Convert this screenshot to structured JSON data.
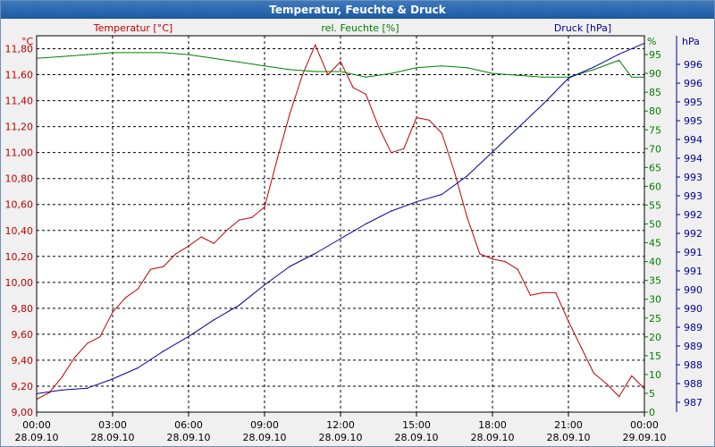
{
  "window": {
    "title": "Temperatur, Feuchte & Druck"
  },
  "colors": {
    "temperature": "#c00000",
    "humidity": "#008000",
    "pressure": "#000099",
    "grid": "#000000",
    "plot_bg": "#ffffff"
  },
  "chart_data": {
    "type": "line",
    "title": "Temperatur, Feuchte & Druck",
    "grid": true,
    "x_axis": {
      "ticks": [
        {
          "time": "00:00",
          "date": "28.09.10"
        },
        {
          "time": "03:00",
          "date": "28.09.10"
        },
        {
          "time": "06:00",
          "date": "28.09.10"
        },
        {
          "time": "09:00",
          "date": "28.09.10"
        },
        {
          "time": "12:00",
          "date": "28.09.10"
        },
        {
          "time": "15:00",
          "date": "28.09.10"
        },
        {
          "time": "18:00",
          "date": "28.09.10"
        },
        {
          "time": "21:00",
          "date": "28.09.10"
        },
        {
          "time": "00:00",
          "date": "29.09.10"
        }
      ],
      "range_hours": [
        0,
        24
      ]
    },
    "y_left": {
      "unit": "°C",
      "label": "Temperatur [°C]",
      "range": [
        9.0,
        11.9
      ],
      "ticks": [
        "11,80",
        "11,60",
        "11,40",
        "11,20",
        "11,00",
        "10,80",
        "10,60",
        "10,40",
        "10,20",
        "10,00",
        "9,80",
        "9,60",
        "9,40",
        "9,20",
        "9,00"
      ],
      "tick_values": [
        11.8,
        11.6,
        11.4,
        11.2,
        11.0,
        10.8,
        10.6,
        10.4,
        10.2,
        10.0,
        9.8,
        9.6,
        9.4,
        9.2,
        9.0
      ]
    },
    "y_right1": {
      "unit": "%",
      "label": "rel. Feuchte [%]",
      "range": [
        0,
        100
      ],
      "ticks": [
        "95",
        "90",
        "85",
        "80",
        "75",
        "70",
        "65",
        "60",
        "55",
        "50",
        "45",
        "40",
        "35",
        "30",
        "25",
        "20",
        "15",
        "10",
        "5",
        "0"
      ],
      "tick_values": [
        95,
        90,
        85,
        80,
        75,
        70,
        65,
        60,
        55,
        50,
        45,
        40,
        35,
        30,
        25,
        20,
        15,
        10,
        5,
        0
      ]
    },
    "y_right2": {
      "unit": "hPa",
      "label": "Druck [hPa]",
      "range": [
        986.4,
        996.6
      ],
      "ticks": [
        "996",
        "996",
        "995",
        "995",
        "994",
        "994",
        "993",
        "993",
        "992",
        "992",
        "991",
        "991",
        "990",
        "990",
        "989",
        "989",
        "988",
        "988",
        "987"
      ]
    },
    "series": [
      {
        "name": "Temperatur [°C]",
        "axis": "left",
        "x": [
          0,
          0.5,
          1,
          1.5,
          2,
          2.5,
          3,
          3.5,
          4,
          4.5,
          5,
          5.5,
          6,
          6.5,
          7,
          7.5,
          8,
          8.5,
          9,
          9.5,
          10,
          10.5,
          11,
          11.5,
          12,
          12.5,
          13,
          13.5,
          14,
          14.5,
          15,
          15.5,
          16,
          16.5,
          17,
          17.5,
          18,
          18.5,
          19,
          19.5,
          20,
          20.5,
          21,
          21.5,
          22,
          22.5,
          23,
          23.5,
          24
        ],
        "values": [
          9.1,
          9.15,
          9.27,
          9.42,
          9.53,
          9.58,
          9.77,
          9.88,
          9.95,
          10.1,
          10.12,
          10.22,
          10.28,
          10.35,
          10.3,
          10.4,
          10.48,
          10.5,
          10.58,
          10.95,
          11.3,
          11.6,
          11.83,
          11.6,
          11.7,
          11.5,
          11.45,
          11.2,
          11.0,
          11.03,
          11.27,
          11.25,
          11.15,
          10.85,
          10.5,
          10.22,
          10.18,
          10.16,
          10.1,
          9.9,
          9.92,
          9.92,
          9.7,
          9.5,
          9.3,
          9.22,
          9.12,
          9.28,
          9.18
        ]
      },
      {
        "name": "rel. Feuchte [%]",
        "axis": "right1",
        "x": [
          0,
          1,
          2,
          3,
          4,
          5,
          6,
          7,
          8,
          9,
          10,
          11,
          12,
          13,
          14,
          15,
          16,
          17,
          18,
          19,
          20,
          21,
          22,
          23,
          23.5,
          24
        ],
        "values": [
          94,
          94.5,
          95,
          95.5,
          95.5,
          95.5,
          95,
          94,
          93,
          92,
          91,
          90.5,
          90.5,
          89,
          90,
          91.5,
          92,
          91.5,
          90,
          89.5,
          89,
          89,
          91,
          93.5,
          89,
          89
        ]
      },
      {
        "name": "Druck [hPa]",
        "axis": "right2",
        "x": [
          0,
          1,
          2,
          3,
          4,
          5,
          6,
          7,
          8,
          9,
          10,
          11,
          12,
          13,
          14,
          15,
          16,
          17,
          18,
          19,
          20,
          21,
          22,
          23,
          24
        ],
        "values": [
          986.9,
          987.0,
          987.05,
          987.3,
          987.6,
          988.05,
          988.45,
          988.9,
          989.3,
          989.85,
          990.35,
          990.7,
          991.1,
          991.5,
          991.85,
          992.1,
          992.3,
          992.8,
          993.45,
          994.1,
          994.75,
          995.45,
          995.75,
          996.1,
          996.4
        ]
      }
    ]
  }
}
